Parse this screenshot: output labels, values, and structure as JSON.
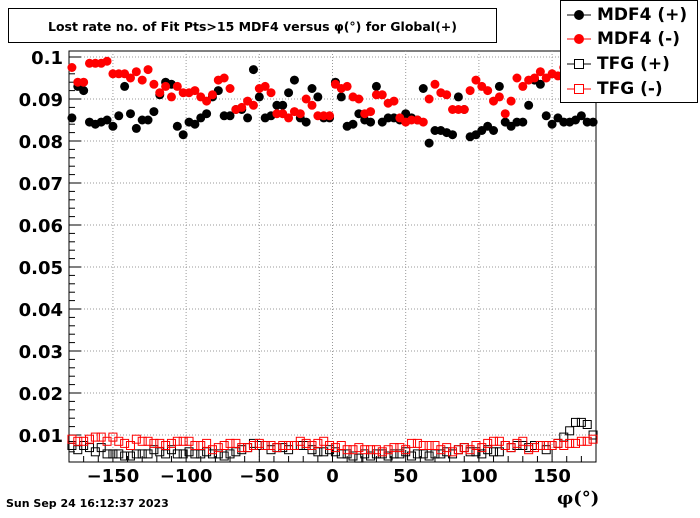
{
  "title": "Lost rate no. of Fit Pts>15 MDF4 versus φ(°) for Global(+)",
  "footer": "Sun Sep 24 16:12:37 2023",
  "x_unit_label": "φ(°)",
  "legend": [
    {
      "label": "MDF4 (+)",
      "color": "#000000",
      "marker": "filled-circle"
    },
    {
      "label": "MDF4 (-)",
      "color": "#ff0000",
      "marker": "filled-circle"
    },
    {
      "label": "TFG (+)",
      "color": "#000000",
      "marker": "open-square"
    },
    {
      "label": "TFG (-)",
      "color": "#ff0000",
      "marker": "open-square"
    }
  ],
  "chart_data": {
    "type": "scatter",
    "title": "Lost rate no. of Fit Pts>15 MDF4 versus φ(°) for Global(+)",
    "xlabel": "φ(°)",
    "ylabel": "",
    "xlim": [
      -180,
      180
    ],
    "ylim": [
      0.005,
      0.1
    ],
    "grid": true,
    "legend_position": "top-right",
    "x_ticks": [
      -150,
      -100,
      -50,
      0,
      50,
      100,
      150
    ],
    "x_tick_labels": [
      "−150",
      "−100",
      "−50",
      "0",
      "50",
      "100",
      "150"
    ],
    "y_ticks": [
      0.01,
      0.02,
      0.03,
      0.04,
      0.05,
      0.06,
      0.07,
      0.08,
      0.09,
      0.1
    ],
    "y_tick_labels": [
      "0.01",
      "0.02",
      "0.03",
      "0.04",
      "0.05",
      "0.06",
      "0.07",
      "0.08",
      "0.09",
      "0.1"
    ],
    "x": [
      -178,
      -174,
      -170,
      -166,
      -162,
      -158,
      -154,
      -150,
      -146,
      -142,
      -138,
      -134,
      -130,
      -126,
      -122,
      -118,
      -114,
      -110,
      -106,
      -102,
      -98,
      -94,
      -90,
      -86,
      -82,
      -78,
      -74,
      -70,
      -66,
      -62,
      -58,
      -54,
      -50,
      -46,
      -42,
      -38,
      -34,
      -30,
      -26,
      -22,
      -18,
      -14,
      -10,
      -6,
      -2,
      2,
      6,
      10,
      14,
      18,
      22,
      26,
      30,
      34,
      38,
      42,
      46,
      50,
      54,
      58,
      62,
      66,
      70,
      74,
      78,
      82,
      86,
      90,
      94,
      98,
      102,
      106,
      110,
      114,
      118,
      122,
      126,
      130,
      134,
      138,
      142,
      146,
      150,
      154,
      158,
      162,
      166,
      170,
      174,
      178
    ],
    "series": [
      {
        "name": "MDF4 (+)",
        "color": "#000000",
        "marker": "filled-circle",
        "values": [
          0.0855,
          0.093,
          0.092,
          0.0845,
          0.084,
          0.0845,
          0.085,
          0.0835,
          0.086,
          0.093,
          0.0865,
          0.083,
          0.085,
          0.085,
          0.087,
          0.091,
          0.094,
          0.0935,
          0.0835,
          0.0815,
          0.0845,
          0.084,
          0.0855,
          0.0865,
          0.0905,
          0.092,
          0.086,
          0.086,
          0.0875,
          0.0875,
          0.0855,
          0.097,
          0.0905,
          0.0855,
          0.086,
          0.0885,
          0.0885,
          0.0915,
          0.0945,
          0.0855,
          0.0845,
          0.0925,
          0.0905,
          0.0855,
          0.0855,
          0.094,
          0.0905,
          0.0835,
          0.084,
          0.0865,
          0.085,
          0.0845,
          0.093,
          0.0845,
          0.0855,
          0.0855,
          0.085,
          0.0865,
          0.0855,
          0.085,
          0.0925,
          0.0795,
          0.0825,
          0.0825,
          0.082,
          0.0815,
          0.0905,
          0.0875,
          0.081,
          0.0815,
          0.0825,
          0.0835,
          0.0825,
          0.093,
          0.0845,
          0.0835,
          0.0845,
          0.0845,
          0.0885,
          0.0945,
          0.0935,
          0.086,
          0.084,
          0.0855,
          0.0845,
          0.0845,
          0.085,
          0.086,
          0.0845,
          0.0845
        ]
      },
      {
        "name": "MDF4 (-)",
        "color": "#ff0000",
        "marker": "filled-circle",
        "values": [
          0.0975,
          0.094,
          0.094,
          0.0985,
          0.0985,
          0.0985,
          0.099,
          0.096,
          0.096,
          0.096,
          0.095,
          0.0965,
          0.0945,
          0.097,
          0.0935,
          0.0915,
          0.093,
          0.0905,
          0.093,
          0.0915,
          0.0915,
          0.092,
          0.0905,
          0.0895,
          0.091,
          0.0945,
          0.095,
          0.0925,
          0.0875,
          0.088,
          0.0895,
          0.0885,
          0.0925,
          0.093,
          0.0915,
          0.0865,
          0.0865,
          0.0855,
          0.087,
          0.0865,
          0.09,
          0.0885,
          0.086,
          0.086,
          0.086,
          0.0935,
          0.0925,
          0.093,
          0.0905,
          0.09,
          0.0865,
          0.087,
          0.091,
          0.091,
          0.089,
          0.0895,
          0.0855,
          0.0845,
          0.085,
          0.085,
          0.0845,
          0.09,
          0.0935,
          0.0915,
          0.091,
          0.0875,
          0.0875,
          0.0875,
          0.092,
          0.0945,
          0.093,
          0.092,
          0.0895,
          0.0905,
          0.0865,
          0.0895,
          0.095,
          0.093,
          0.0945,
          0.095,
          0.0965,
          0.095,
          0.096,
          0.0955,
          0.0975,
          0.097,
          0.096,
          0.095,
          0.0965,
          0.098
        ]
      },
      {
        "name": "TFG (+)",
        "color": "#000000",
        "marker": "open-square",
        "values": [
          0.0075,
          0.0065,
          0.0075,
          0.007,
          0.006,
          0.007,
          0.0055,
          0.0055,
          0.0055,
          0.005,
          0.005,
          0.0055,
          0.0055,
          0.0055,
          0.0065,
          0.006,
          0.0055,
          0.0065,
          0.0055,
          0.0055,
          0.006,
          0.0055,
          0.0055,
          0.006,
          0.0055,
          0.0055,
          0.005,
          0.0055,
          0.006,
          0.0065,
          0.007,
          0.008,
          0.0075,
          0.0075,
          0.0065,
          0.007,
          0.007,
          0.0065,
          0.0075,
          0.0075,
          0.0075,
          0.0065,
          0.006,
          0.006,
          0.0065,
          0.006,
          0.0055,
          0.0055,
          0.005,
          0.0045,
          0.0055,
          0.005,
          0.0055,
          0.0055,
          0.005,
          0.0055,
          0.0055,
          0.006,
          0.005,
          0.0055,
          0.0055,
          0.005,
          0.0055,
          0.0055,
          0.006,
          0.0055,
          0.0065,
          0.007,
          0.006,
          0.006,
          0.0055,
          0.0065,
          0.006,
          0.006,
          0.0075,
          0.007,
          0.0075,
          0.0075,
          0.007,
          0.0075,
          0.0075,
          0.0065,
          0.0075,
          0.008,
          0.0095,
          0.011,
          0.013,
          0.013,
          0.0125,
          0.01
        ]
      },
      {
        "name": "TFG (-)",
        "color": "#ff0000",
        "marker": "open-square",
        "values": [
          0.009,
          0.0085,
          0.0085,
          0.009,
          0.0095,
          0.0095,
          0.0085,
          0.0095,
          0.0085,
          0.008,
          0.0075,
          0.009,
          0.0085,
          0.0085,
          0.008,
          0.008,
          0.0075,
          0.008,
          0.0085,
          0.0085,
          0.0085,
          0.0075,
          0.0075,
          0.008,
          0.0065,
          0.007,
          0.0075,
          0.008,
          0.008,
          0.007,
          0.007,
          0.0075,
          0.008,
          0.0075,
          0.0075,
          0.007,
          0.0075,
          0.0075,
          0.0075,
          0.0085,
          0.008,
          0.0075,
          0.008,
          0.0085,
          0.0075,
          0.007,
          0.0075,
          0.0065,
          0.0065,
          0.007,
          0.0065,
          0.0065,
          0.0065,
          0.006,
          0.0065,
          0.007,
          0.007,
          0.0065,
          0.008,
          0.008,
          0.0075,
          0.0075,
          0.0075,
          0.0065,
          0.007,
          0.006,
          0.0065,
          0.007,
          0.0065,
          0.0075,
          0.007,
          0.008,
          0.0085,
          0.0085,
          0.0075,
          0.007,
          0.008,
          0.0085,
          0.0065,
          0.007,
          0.0075,
          0.0075,
          0.0075,
          0.008,
          0.0075,
          0.008,
          0.008,
          0.0085,
          0.0085,
          0.009
        ]
      }
    ]
  }
}
